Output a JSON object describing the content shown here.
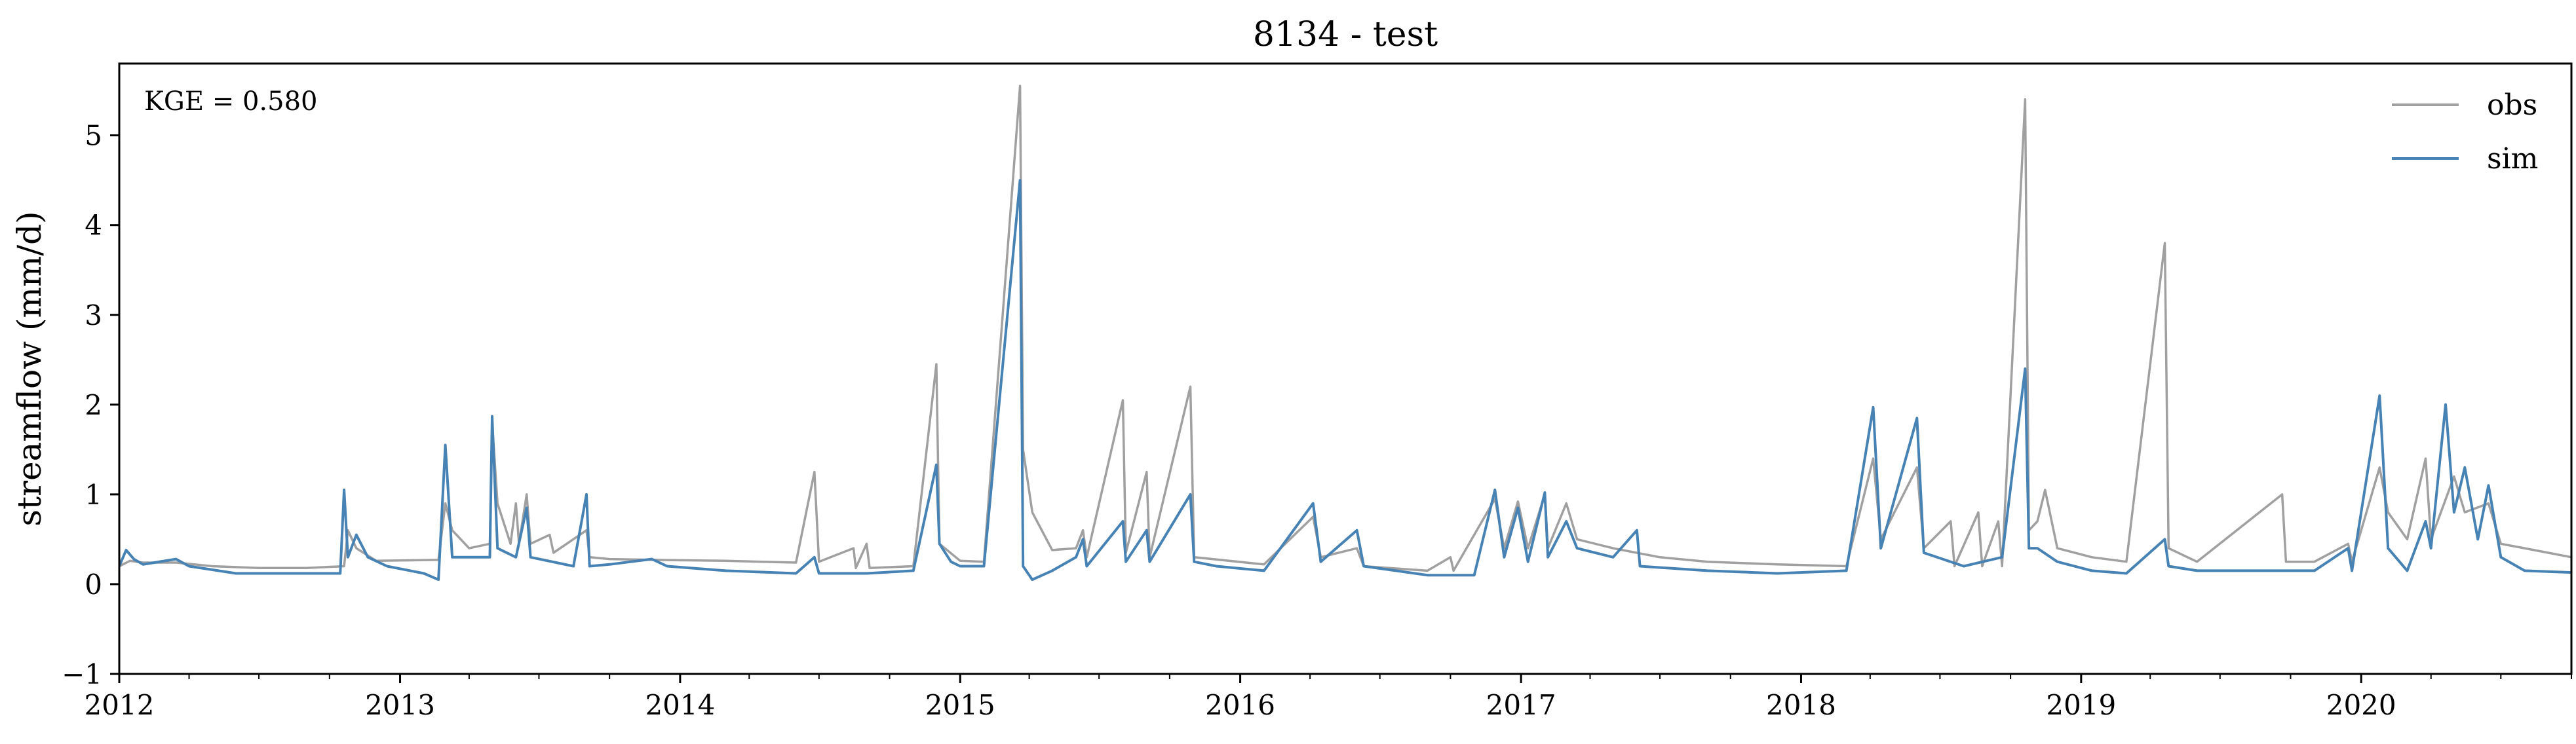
{
  "chart_data": {
    "type": "line",
    "title": "8134 - test",
    "xlabel": "",
    "ylabel": "streamflow (mm/d)",
    "annotation": "KGE = 0.580",
    "xlim": [
      "2012-01-01",
      "2020-10-01"
    ],
    "ylim": [
      -1,
      5.8
    ],
    "x_ticks": [
      "2012",
      "2013",
      "2014",
      "2015",
      "2016",
      "2017",
      "2018",
      "2019",
      "2020"
    ],
    "y_ticks": [
      -1,
      0,
      1,
      2,
      3,
      4,
      5
    ],
    "y_tick_labels": [
      "−1",
      "0",
      "1",
      "2",
      "3",
      "4",
      "5"
    ],
    "legend_position": "top-right",
    "grid": false,
    "series": [
      {
        "name": "obs",
        "color": "#a0a0a0",
        "points": [
          [
            "2012-01-01",
            0.2
          ],
          [
            "2012-01-15",
            0.26
          ],
          [
            "2012-02-01",
            0.24
          ],
          [
            "2012-03-15",
            0.24
          ],
          [
            "2012-05-01",
            0.2
          ],
          [
            "2012-07-01",
            0.18
          ],
          [
            "2012-09-01",
            0.18
          ],
          [
            "2012-10-20",
            0.2
          ],
          [
            "2012-10-25",
            0.6
          ],
          [
            "2012-11-05",
            0.4
          ],
          [
            "2012-12-01",
            0.26
          ],
          [
            "2013-02-20",
            0.27
          ],
          [
            "2013-03-01",
            0.9
          ],
          [
            "2013-03-10",
            0.6
          ],
          [
            "2013-04-01",
            0.4
          ],
          [
            "2013-04-28",
            0.45
          ],
          [
            "2013-05-01",
            1.8
          ],
          [
            "2013-05-08",
            0.9
          ],
          [
            "2013-05-25",
            0.45
          ],
          [
            "2013-06-01",
            0.9
          ],
          [
            "2013-06-05",
            0.45
          ],
          [
            "2013-06-15",
            1.0
          ],
          [
            "2013-06-20",
            0.45
          ],
          [
            "2013-07-15",
            0.55
          ],
          [
            "2013-07-20",
            0.35
          ],
          [
            "2013-09-01",
            0.6
          ],
          [
            "2013-09-05",
            0.3
          ],
          [
            "2013-10-01",
            0.28
          ],
          [
            "2013-12-01",
            0.27
          ],
          [
            "2014-03-01",
            0.26
          ],
          [
            "2014-06-01",
            0.24
          ],
          [
            "2014-06-25",
            1.25
          ],
          [
            "2014-07-01",
            0.25
          ],
          [
            "2014-08-15",
            0.4
          ],
          [
            "2014-08-18",
            0.18
          ],
          [
            "2014-09-01",
            0.45
          ],
          [
            "2014-09-05",
            0.18
          ],
          [
            "2014-11-01",
            0.2
          ],
          [
            "2014-12-01",
            2.45
          ],
          [
            "2014-12-05",
            0.45
          ],
          [
            "2015-01-01",
            0.26
          ],
          [
            "2015-02-01",
            0.25
          ],
          [
            "2015-03-20",
            5.55
          ],
          [
            "2015-03-24",
            1.5
          ],
          [
            "2015-04-05",
            0.8
          ],
          [
            "2015-05-01",
            0.38
          ],
          [
            "2015-06-01",
            0.4
          ],
          [
            "2015-06-10",
            0.6
          ],
          [
            "2015-06-15",
            0.3
          ],
          [
            "2015-08-01",
            2.05
          ],
          [
            "2015-08-05",
            0.35
          ],
          [
            "2015-09-01",
            1.25
          ],
          [
            "2015-09-05",
            0.3
          ],
          [
            "2015-10-28",
            2.2
          ],
          [
            "2015-11-02",
            0.3
          ],
          [
            "2016-02-01",
            0.22
          ],
          [
            "2016-04-05",
            0.75
          ],
          [
            "2016-04-15",
            0.3
          ],
          [
            "2016-06-01",
            0.4
          ],
          [
            "2016-06-10",
            0.2
          ],
          [
            "2016-09-01",
            0.15
          ],
          [
            "2016-10-01",
            0.3
          ],
          [
            "2016-10-05",
            0.15
          ],
          [
            "2016-11-28",
            0.95
          ],
          [
            "2016-12-10",
            0.4
          ],
          [
            "2016-12-28",
            0.92
          ],
          [
            "2017-01-10",
            0.4
          ],
          [
            "2017-02-01",
            1.0
          ],
          [
            "2017-02-05",
            0.4
          ],
          [
            "2017-03-01",
            0.9
          ],
          [
            "2017-03-15",
            0.5
          ],
          [
            "2017-05-01",
            0.4
          ],
          [
            "2017-07-01",
            0.3
          ],
          [
            "2017-09-01",
            0.25
          ],
          [
            "2017-12-01",
            0.22
          ],
          [
            "2018-03-01",
            0.2
          ],
          [
            "2018-04-05",
            1.4
          ],
          [
            "2018-04-15",
            0.5
          ],
          [
            "2018-06-01",
            1.3
          ],
          [
            "2018-06-10",
            0.4
          ],
          [
            "2018-07-15",
            0.7
          ],
          [
            "2018-07-20",
            0.2
          ],
          [
            "2018-08-20",
            0.8
          ],
          [
            "2018-08-25",
            0.2
          ],
          [
            "2018-09-15",
            0.7
          ],
          [
            "2018-09-20",
            0.2
          ],
          [
            "2018-10-20",
            5.4
          ],
          [
            "2018-10-25",
            0.6
          ],
          [
            "2018-11-05",
            0.7
          ],
          [
            "2018-11-15",
            1.05
          ],
          [
            "2018-12-01",
            0.4
          ],
          [
            "2019-01-15",
            0.3
          ],
          [
            "2019-03-01",
            0.25
          ],
          [
            "2019-04-20",
            3.8
          ],
          [
            "2019-04-25",
            0.4
          ],
          [
            "2019-06-01",
            0.25
          ],
          [
            "2019-09-20",
            1.0
          ],
          [
            "2019-09-25",
            0.25
          ],
          [
            "2019-11-01",
            0.25
          ],
          [
            "2019-12-15",
            0.45
          ],
          [
            "2019-12-20",
            0.25
          ],
          [
            "2020-01-25",
            1.3
          ],
          [
            "2020-02-05",
            0.8
          ],
          [
            "2020-03-01",
            0.5
          ],
          [
            "2020-03-25",
            1.4
          ],
          [
            "2020-04-01",
            0.5
          ],
          [
            "2020-05-01",
            1.2
          ],
          [
            "2020-05-15",
            0.8
          ],
          [
            "2020-06-15",
            0.9
          ],
          [
            "2020-07-01",
            0.45
          ],
          [
            "2020-08-01",
            0.4
          ],
          [
            "2020-10-01",
            0.3
          ]
        ]
      },
      {
        "name": "sim",
        "color": "#4682b4",
        "points": [
          [
            "2012-01-01",
            0.2
          ],
          [
            "2012-01-10",
            0.38
          ],
          [
            "2012-01-20",
            0.28
          ],
          [
            "2012-02-01",
            0.22
          ],
          [
            "2012-03-15",
            0.28
          ],
          [
            "2012-04-01",
            0.2
          ],
          [
            "2012-06-01",
            0.12
          ],
          [
            "2012-08-01",
            0.12
          ],
          [
            "2012-10-15",
            0.12
          ],
          [
            "2012-10-20",
            1.05
          ],
          [
            "2012-10-25",
            0.3
          ],
          [
            "2012-11-05",
            0.55
          ],
          [
            "2012-11-20",
            0.3
          ],
          [
            "2012-12-15",
            0.2
          ],
          [
            "2013-02-01",
            0.12
          ],
          [
            "2013-02-20",
            0.05
          ],
          [
            "2013-03-01",
            1.55
          ],
          [
            "2013-03-10",
            0.3
          ],
          [
            "2013-04-01",
            0.3
          ],
          [
            "2013-04-28",
            0.3
          ],
          [
            "2013-05-01",
            1.87
          ],
          [
            "2013-05-08",
            0.4
          ],
          [
            "2013-06-01",
            0.3
          ],
          [
            "2013-06-15",
            0.85
          ],
          [
            "2013-06-20",
            0.3
          ],
          [
            "2013-08-15",
            0.2
          ],
          [
            "2013-09-01",
            1.0
          ],
          [
            "2013-09-05",
            0.2
          ],
          [
            "2013-10-01",
            0.22
          ],
          [
            "2013-11-25",
            0.28
          ],
          [
            "2013-12-15",
            0.2
          ],
          [
            "2014-03-01",
            0.15
          ],
          [
            "2014-06-01",
            0.12
          ],
          [
            "2014-06-25",
            0.3
          ],
          [
            "2014-07-01",
            0.12
          ],
          [
            "2014-09-01",
            0.12
          ],
          [
            "2014-11-01",
            0.15
          ],
          [
            "2014-12-01",
            1.33
          ],
          [
            "2014-12-05",
            0.45
          ],
          [
            "2014-12-20",
            0.25
          ],
          [
            "2015-01-01",
            0.2
          ],
          [
            "2015-02-01",
            0.2
          ],
          [
            "2015-03-20",
            4.5
          ],
          [
            "2015-03-24",
            0.2
          ],
          [
            "2015-04-05",
            0.05
          ],
          [
            "2015-05-01",
            0.15
          ],
          [
            "2015-06-01",
            0.3
          ],
          [
            "2015-06-10",
            0.5
          ],
          [
            "2015-06-15",
            0.2
          ],
          [
            "2015-08-01",
            0.7
          ],
          [
            "2015-08-05",
            0.25
          ],
          [
            "2015-09-01",
            0.6
          ],
          [
            "2015-09-05",
            0.25
          ],
          [
            "2015-10-28",
            1.0
          ],
          [
            "2015-11-02",
            0.25
          ],
          [
            "2015-12-01",
            0.2
          ],
          [
            "2016-02-01",
            0.15
          ],
          [
            "2016-04-05",
            0.9
          ],
          [
            "2016-04-15",
            0.25
          ],
          [
            "2016-06-01",
            0.6
          ],
          [
            "2016-06-10",
            0.2
          ],
          [
            "2016-09-01",
            0.1
          ],
          [
            "2016-11-01",
            0.1
          ],
          [
            "2016-11-28",
            1.05
          ],
          [
            "2016-12-10",
            0.3
          ],
          [
            "2016-12-28",
            0.85
          ],
          [
            "2017-01-10",
            0.25
          ],
          [
            "2017-02-01",
            1.02
          ],
          [
            "2017-02-05",
            0.3
          ],
          [
            "2017-03-01",
            0.7
          ],
          [
            "2017-03-15",
            0.4
          ],
          [
            "2017-05-01",
            0.3
          ],
          [
            "2017-06-01",
            0.6
          ],
          [
            "2017-06-05",
            0.2
          ],
          [
            "2017-09-01",
            0.15
          ],
          [
            "2017-12-01",
            0.12
          ],
          [
            "2018-03-01",
            0.15
          ],
          [
            "2018-04-05",
            1.97
          ],
          [
            "2018-04-15",
            0.4
          ],
          [
            "2018-06-01",
            1.85
          ],
          [
            "2018-06-10",
            0.35
          ],
          [
            "2018-08-01",
            0.2
          ],
          [
            "2018-09-20",
            0.3
          ],
          [
            "2018-10-20",
            2.4
          ],
          [
            "2018-10-25",
            0.4
          ],
          [
            "2018-11-05",
            0.4
          ],
          [
            "2018-12-01",
            0.25
          ],
          [
            "2019-01-15",
            0.15
          ],
          [
            "2019-03-01",
            0.12
          ],
          [
            "2019-04-20",
            0.5
          ],
          [
            "2019-04-25",
            0.2
          ],
          [
            "2019-06-01",
            0.15
          ],
          [
            "2019-09-20",
            0.15
          ],
          [
            "2019-11-01",
            0.15
          ],
          [
            "2019-12-15",
            0.4
          ],
          [
            "2019-12-20",
            0.15
          ],
          [
            "2020-01-25",
            2.1
          ],
          [
            "2020-02-05",
            0.4
          ],
          [
            "2020-03-01",
            0.15
          ],
          [
            "2020-03-25",
            0.7
          ],
          [
            "2020-04-01",
            0.4
          ],
          [
            "2020-04-20",
            2.0
          ],
          [
            "2020-05-01",
            0.8
          ],
          [
            "2020-05-15",
            1.3
          ],
          [
            "2020-06-01",
            0.5
          ],
          [
            "2020-06-15",
            1.1
          ],
          [
            "2020-07-01",
            0.3
          ],
          [
            "2020-08-01",
            0.15
          ],
          [
            "2020-10-01",
            0.13
          ]
        ]
      }
    ]
  }
}
